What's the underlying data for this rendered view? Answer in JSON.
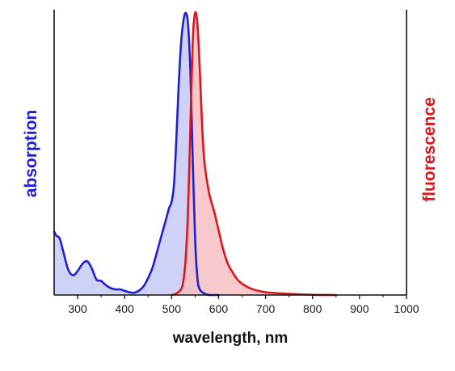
{
  "chart_data": {
    "type": "area",
    "xlabel": "wavelength, nm",
    "ylabel_left": "absorption",
    "ylabel_right": "fluorescence",
    "xlim": [
      250,
      1000
    ],
    "ylim": [
      0,
      1
    ],
    "xticks": [
      300,
      400,
      500,
      600,
      700,
      800,
      900,
      1000
    ],
    "grid": false,
    "colors": {
      "absorption": "#1f1fd6",
      "absorption_fill": "#c7c9f4",
      "fluorescence": "#e0151b",
      "fluorescence_fill": "#f7c0c3",
      "axis": "#111111"
    },
    "series": [
      {
        "key": "absorption",
        "x": [
          250,
          255,
          262,
          270,
          280,
          290,
          300,
          310,
          320,
          330,
          340,
          350,
          360,
          370,
          380,
          390,
          400,
          410,
          420,
          430,
          440,
          450,
          460,
          470,
          480,
          490,
          495,
          500,
          505,
          510,
          515,
          520,
          525,
          530,
          535,
          540,
          545,
          550,
          555,
          560,
          570,
          580,
          600
        ],
        "y": [
          0.225,
          0.21,
          0.2,
          0.15,
          0.09,
          0.07,
          0.085,
          0.11,
          0.12,
          0.095,
          0.055,
          0.05,
          0.035,
          0.025,
          0.02,
          0.02,
          0.015,
          0.01,
          0.008,
          0.015,
          0.03,
          0.06,
          0.1,
          0.16,
          0.22,
          0.28,
          0.31,
          0.33,
          0.39,
          0.55,
          0.74,
          0.89,
          0.97,
          1.0,
          0.96,
          0.79,
          0.48,
          0.2,
          0.06,
          0.02,
          0.005,
          0.0,
          0.0
        ]
      },
      {
        "key": "fluorescence",
        "x": [
          500,
          510,
          520,
          525,
          530,
          535,
          540,
          545,
          550,
          555,
          560,
          565,
          570,
          580,
          590,
          600,
          610,
          620,
          630,
          640,
          650,
          670,
          700,
          750,
          800,
          850
        ],
        "y": [
          0.0,
          0.005,
          0.02,
          0.05,
          0.13,
          0.3,
          0.6,
          0.9,
          1.0,
          0.96,
          0.8,
          0.6,
          0.47,
          0.36,
          0.3,
          0.23,
          0.16,
          0.11,
          0.08,
          0.055,
          0.04,
          0.022,
          0.01,
          0.004,
          0.001,
          0.0
        ]
      }
    ]
  }
}
